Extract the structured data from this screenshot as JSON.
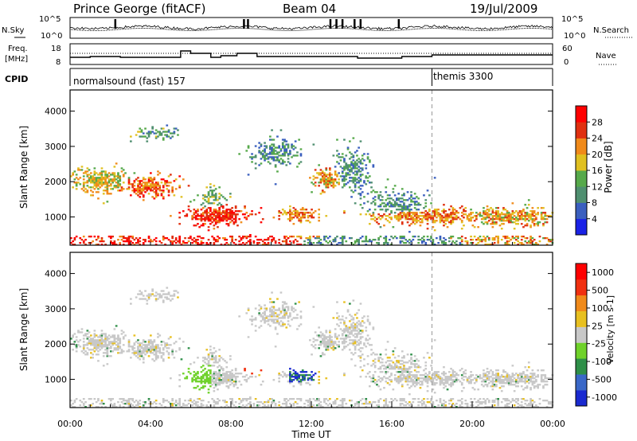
{
  "header": {
    "station": "Prince George (fitACF)",
    "beam": "Beam 04",
    "date": "19/Jul/2009"
  },
  "top_panels": {
    "nsky_label": "N.Sky",
    "nsearch_label": "N.Search",
    "n_ticks": [
      "10^5",
      "10^0"
    ],
    "freq_label_1": "Freq.",
    "freq_label_2": "[MHz]",
    "freq_ticks": [
      "18",
      "8"
    ],
    "nave_label": "Nave",
    "nave_ticks": [
      "60",
      "0"
    ],
    "cpid_label": "CPID",
    "cpid_1": "normalsound (fast) 157",
    "cpid_2": "themis 3300"
  },
  "chart_data": [
    {
      "type": "heatmap",
      "name": "power",
      "ylabel": "Slant Range [km]",
      "ylim": [
        200,
        4600
      ],
      "xlim": [
        0,
        24
      ],
      "y_ticks": [
        1000,
        2000,
        3000,
        4000
      ],
      "colorbar": {
        "label": "Power [dB]",
        "ticks": [
          "4",
          "8",
          "12",
          "16",
          "20",
          "24",
          "28"
        ],
        "colors": [
          "#1a22e6",
          "#3a5fbf",
          "#4f8f70",
          "#56a94a",
          "#e0c020",
          "#f08a1a",
          "#e03010",
          "#ff0000"
        ]
      }
    },
    {
      "type": "heatmap",
      "name": "velocity",
      "ylabel": "Slant Range [km]",
      "xlabel": "Time UT",
      "ylim": [
        200,
        4600
      ],
      "xlim": [
        0,
        24
      ],
      "y_ticks": [
        1000,
        2000,
        3000,
        4000
      ],
      "x_tick_labels": [
        "00:00",
        "04:00",
        "08:00",
        "12:00",
        "16:00",
        "20:00",
        "00:00"
      ],
      "colorbar": {
        "label": "Velocity [m s-1]",
        "ticks": [
          "1000",
          "500",
          "100",
          "25",
          "-25",
          "-100",
          "-500",
          "-1000"
        ],
        "colors": [
          "#1a2ad0",
          "#3a68c8",
          "#2e8f48",
          "#6fd22a",
          "#c8c8c8",
          "#e8c020",
          "#f08a1a",
          "#f03010",
          "#ff0000"
        ]
      }
    }
  ],
  "cpid_change_ut": 18
}
